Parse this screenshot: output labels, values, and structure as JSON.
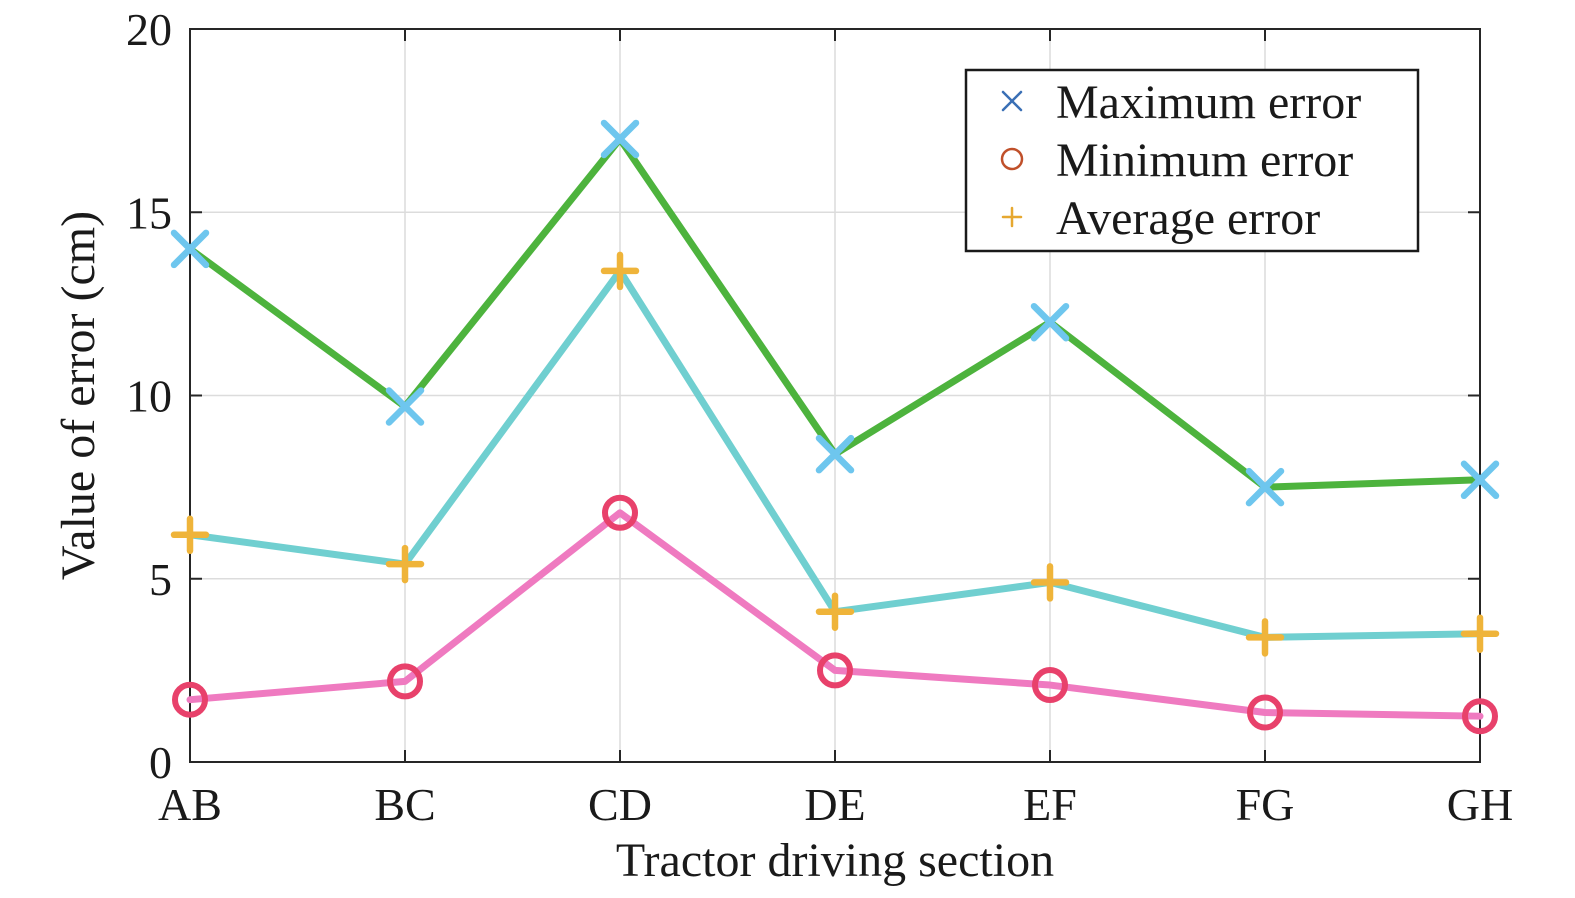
{
  "chart_data": {
    "type": "line",
    "categories": [
      "AB",
      "BC",
      "CD",
      "DE",
      "EF",
      "FG",
      "GH"
    ],
    "xlabel": "Tractor driving section",
    "ylabel": "Value of error (cm)",
    "ylim": [
      0,
      20
    ],
    "yticks": [
      "0",
      "5",
      "10",
      "15",
      "20"
    ],
    "grid": true,
    "legend_position": "top-right",
    "series": [
      {
        "name": "Maximum error",
        "values": [
          14.0,
          9.7,
          17.0,
          8.4,
          12.0,
          7.5,
          7.7
        ],
        "line_color": "#4db33d",
        "marker": "x",
        "marker_color": "#6ec6ee",
        "legend_marker_color": "#3a6fb5"
      },
      {
        "name": "Minimum error",
        "values": [
          1.7,
          2.2,
          6.8,
          2.5,
          2.1,
          1.35,
          1.25
        ],
        "line_color": "#ef7ac0",
        "marker": "o",
        "marker_color": "#e8416b",
        "legend_marker_color": "#c0502a"
      },
      {
        "name": "Average error",
        "values": [
          6.2,
          5.4,
          13.4,
          4.1,
          4.9,
          3.4,
          3.5
        ],
        "line_color": "#70cfd0",
        "marker": "+",
        "marker_color": "#efb43a",
        "legend_marker_color": "#e6a830"
      }
    ]
  }
}
